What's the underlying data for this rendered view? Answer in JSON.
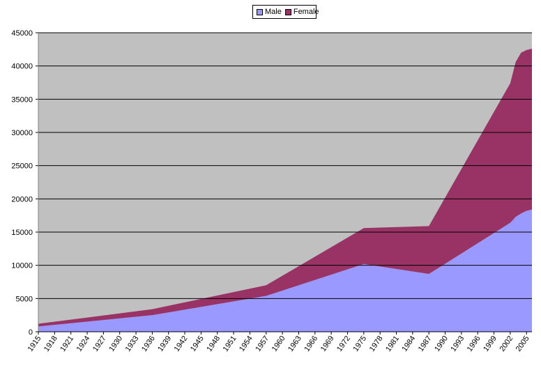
{
  "chart_data": {
    "type": "area",
    "stacked": true,
    "legend_position": "top",
    "grid": true,
    "ylim": [
      0,
      45000
    ],
    "y_ticks": [
      0,
      5000,
      10000,
      15000,
      20000,
      25000,
      30000,
      35000,
      40000,
      45000
    ],
    "x_ticks": [
      "1915",
      "1918",
      "1921",
      "1924",
      "1927",
      "1930",
      "1933",
      "1936",
      "1939",
      "1942",
      "1945",
      "1948",
      "1951",
      "1954",
      "1957",
      "1960",
      "1963",
      "1966",
      "1969",
      "1972",
      "1975",
      "1978",
      "1981",
      "1984",
      "1987",
      "1990",
      "1993",
      "1996",
      "1999",
      "2002",
      "2005"
    ],
    "xlim": [
      1915,
      2006
    ],
    "x": [
      1915,
      1936,
      1957,
      1975,
      1987,
      2002,
      2003,
      2004,
      2005,
      2006
    ],
    "series": [
      {
        "name": "Male",
        "color": "#9999ff",
        "values": [
          800,
          2500,
          5400,
          10200,
          8700,
          16400,
          17300,
          17800,
          18200,
          18400
        ]
      },
      {
        "name": "Female",
        "color": "#993366",
        "values": [
          400,
          900,
          1600,
          5400,
          7200,
          21000,
          23300,
          24200,
          24200,
          24200
        ]
      }
    ],
    "plot_background": "#c0c0c0"
  }
}
